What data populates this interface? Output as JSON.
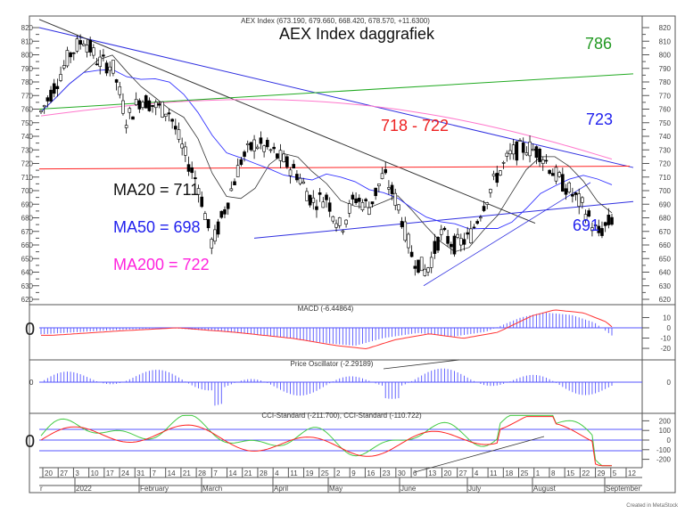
{
  "header": {
    "quote_line": "AEX Index (673.190, 679.660, 668.420, 678.570, +11.6300)",
    "title": "AEX Index daggrafiek"
  },
  "annotations": {
    "ma20": "MA20 = 711",
    "ma50": "MA50 = 698",
    "ma200": "MA200 = 722",
    "resistance_zone": "718 - 722",
    "level_786": "786",
    "level_723": "723",
    "level_691": "691"
  },
  "panels": {
    "macd_label": "MACD (-6.44864)",
    "oscillator_label": "Price Oscillator (-2.29189)",
    "cci_label": "CCI-Standard (-211.700), CCI-Standard (-110.722)",
    "zero_big": "0",
    "zero_small": "0"
  },
  "footer": {
    "credit": "Created in MetaStock"
  },
  "colors": {
    "price": "#000000",
    "ma20": "#333333",
    "ma50": "#3333ff",
    "ma200": "#ff77cc",
    "trend_blue": "#2f2fe0",
    "trend_green": "#22aa22",
    "trend_black": "#333333",
    "support_red": "#ff2222",
    "macd_hist": "#5555ff",
    "macd_signal": "#ff3333",
    "cci_red": "#ff2222",
    "cci_green": "#44cc44",
    "text_786": "#229922",
    "text_723": "#2222ee",
    "text_718": "#ee2222",
    "text_ma20": "#111111",
    "text_ma50": "#2222ee",
    "text_ma200": "#ff22dd"
  },
  "chart_data": [
    {
      "type": "candlestick",
      "title": "AEX Index daggrafiek",
      "subtitle": "AEX Index (673.190, 679.660, 668.420, 678.570, +11.6300)",
      "ylabel": "",
      "ylim": [
        620,
        820
      ],
      "yticks": [
        820,
        810,
        800,
        790,
        780,
        770,
        760,
        750,
        740,
        730,
        720,
        710,
        700,
        690,
        680,
        670,
        660,
        650,
        640,
        630,
        620
      ],
      "grid": false,
      "x_day_ticks": [
        "20",
        "27",
        "3",
        "10",
        "17",
        "24",
        "31",
        "7",
        "14",
        "21",
        "28",
        "7",
        "14",
        "21",
        "28",
        "4",
        "11",
        "19",
        "25",
        "2",
        "9",
        "16",
        "23",
        "30",
        "6",
        "13",
        "20",
        "27",
        "4",
        "11",
        "18",
        "25",
        "1",
        "8",
        "15",
        "22",
        "29",
        "5",
        "12"
      ],
      "x_month_labels": [
        "r",
        "2022",
        "February",
        "March",
        "April",
        "May",
        "June",
        "July",
        "August",
        "September"
      ],
      "approx_close_path": [
        {
          "date": "Dec 20",
          "close": 758
        },
        {
          "date": "Dec 27",
          "close": 778
        },
        {
          "date": "Jan 3",
          "close": 800
        },
        {
          "date": "Jan 5",
          "close": 812
        },
        {
          "date": "Jan 10",
          "close": 795
        },
        {
          "date": "Jan 17",
          "close": 792
        },
        {
          "date": "Jan 24",
          "close": 752
        },
        {
          "date": "Jan 31",
          "close": 768
        },
        {
          "date": "Feb 7",
          "close": 762
        },
        {
          "date": "Feb 14",
          "close": 758
        },
        {
          "date": "Feb 21",
          "close": 728
        },
        {
          "date": "Feb 28",
          "close": 705
        },
        {
          "date": "Mar 7",
          "close": 660
        },
        {
          "date": "Mar 14",
          "close": 690
        },
        {
          "date": "Mar 21",
          "close": 722
        },
        {
          "date": "Mar 28",
          "close": 735
        },
        {
          "date": "Apr 4",
          "close": 730
        },
        {
          "date": "Apr 11",
          "close": 722
        },
        {
          "date": "Apr 19",
          "close": 712
        },
        {
          "date": "Apr 25",
          "close": 692
        },
        {
          "date": "May 2",
          "close": 695
        },
        {
          "date": "May 9",
          "close": 672
        },
        {
          "date": "May 16",
          "close": 695
        },
        {
          "date": "May 23",
          "close": 688
        },
        {
          "date": "May 30",
          "close": 712
        },
        {
          "date": "Jun 6",
          "close": 690
        },
        {
          "date": "Jun 13",
          "close": 652
        },
        {
          "date": "Jun 20",
          "close": 640
        },
        {
          "date": "Jun 27",
          "close": 668
        },
        {
          "date": "Jul 4",
          "close": 660
        },
        {
          "date": "Jul 11",
          "close": 665
        },
        {
          "date": "Jul 18",
          "close": 690
        },
        {
          "date": "Jul 25",
          "close": 712
        },
        {
          "date": "Aug 1",
          "close": 728
        },
        {
          "date": "Aug 8",
          "close": 732
        },
        {
          "date": "Aug 15",
          "close": 728
        },
        {
          "date": "Aug 22",
          "close": 712
        },
        {
          "date": "Aug 26",
          "close": 700
        },
        {
          "date": "Aug 29",
          "close": 688
        },
        {
          "date": "Aug 31",
          "close": 668
        },
        {
          "date": "Sep 1",
          "close": 678.57
        }
      ],
      "indicators": {
        "MA20": 711,
        "MA50": 698,
        "MA200": 722
      },
      "horizontal_levels": [
        {
          "name": "resistance",
          "value_range": [
            718,
            722
          ],
          "color": "red"
        }
      ],
      "trendlines": [
        {
          "name": "786 rising line",
          "color": "green",
          "end_value": 786
        },
        {
          "name": "falling upper line",
          "color": "blue",
          "end_value": 723
        },
        {
          "name": "rising support",
          "color": "blue",
          "end_value": 691
        },
        {
          "name": "long falling line",
          "color": "black"
        }
      ]
    },
    {
      "type": "bar+line",
      "title": "MACD (-6.44864)",
      "ylim": [
        -25,
        20
      ],
      "yticks": [
        10,
        0,
        -10,
        -20
      ],
      "series": [
        {
          "name": "MACD histogram",
          "type": "bar"
        },
        {
          "name": "MACD signal",
          "type": "line",
          "last": -6.44864
        }
      ]
    },
    {
      "type": "bar",
      "title": "Price Oscillator (-2.29189)",
      "yticks": [
        0
      ],
      "series": [
        {
          "name": "Price Oscillator",
          "last": -2.29189
        }
      ]
    },
    {
      "type": "line",
      "title": "CCI-Standard (-211.700), CCI-Standard (-110.722)",
      "ylim": [
        -300,
        300
      ],
      "yticks": [
        200,
        100,
        0,
        -100,
        -200
      ],
      "reference_lines": [
        100,
        0,
        -100
      ],
      "series": [
        {
          "name": "CCI-Standard (red)",
          "last": -211.7
        },
        {
          "name": "CCI-Standard (green)",
          "last": -110.722
        }
      ]
    }
  ]
}
